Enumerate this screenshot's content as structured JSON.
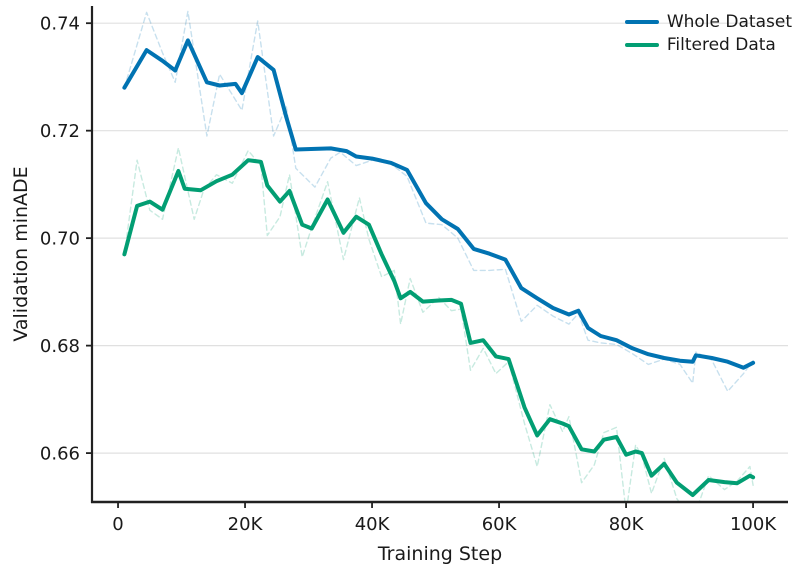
{
  "chart_data": {
    "type": "line",
    "title": "",
    "xlabel": "Training Step",
    "ylabel": "Validation minADE",
    "grid": "horizontal-only",
    "legend_position": "upper right",
    "axes": {
      "xlim_ksteps": [
        -4.1,
        105.5
      ],
      "ylim": [
        0.6509,
        0.7432
      ],
      "x_ticks": [
        {
          "value": 0,
          "label": "0"
        },
        {
          "value": 20,
          "label": "20K"
        },
        {
          "value": 40,
          "label": "40K"
        },
        {
          "value": 60,
          "label": "60K"
        },
        {
          "value": 80,
          "label": "80K"
        },
        {
          "value": 100,
          "label": "100K"
        }
      ],
      "y_ticks": [
        {
          "value": 0.66,
          "label": "0.66"
        },
        {
          "value": 0.68,
          "label": "0.68"
        },
        {
          "value": 0.7,
          "label": "0.70"
        },
        {
          "value": 0.72,
          "label": "0.72"
        },
        {
          "value": 0.74,
          "label": "0.74"
        }
      ]
    },
    "colors": {
      "whole_dataset": "#0173b2",
      "filtered_data": "#029e73",
      "grid_line": "#e0e0e0",
      "spine": "#212121",
      "text": "#1a1a1a"
    },
    "legend": [
      {
        "label": "Whole Dataset",
        "color": "#0173b2"
      },
      {
        "label": "Filtered Data",
        "color": "#029e73"
      }
    ],
    "series": [
      {
        "name": "Whole Dataset (raw, unsmoothed)",
        "role": "raw",
        "color": "#0173b2",
        "opacity": 0.22,
        "dashed": true,
        "line_width": 1.4,
        "x_ksteps": [
          1,
          4.5,
          7,
          9,
          11,
          14,
          16,
          19.5,
          22,
          24.5,
          26.5,
          28,
          31,
          33.5,
          35,
          37.5,
          40,
          43,
          45.5,
          48.5,
          51,
          53.5,
          56,
          58.5,
          61,
          63.5,
          66,
          68.5,
          71,
          72.5,
          74,
          76,
          78.5,
          81,
          83.5,
          86,
          88.5,
          90.5,
          91,
          93.5,
          96,
          98.5,
          100
        ],
        "y": [
          0.728,
          0.742,
          0.7345,
          0.729,
          0.7422,
          0.719,
          0.7305,
          0.7238,
          0.7404,
          0.719,
          0.7245,
          0.713,
          0.7095,
          0.7149,
          0.716,
          0.7135,
          0.7145,
          0.7138,
          0.7115,
          0.7028,
          0.7025,
          0.7,
          0.694,
          0.694,
          0.6942,
          0.6845,
          0.6875,
          0.6855,
          0.684,
          0.686,
          0.681,
          0.6805,
          0.6802,
          0.6785,
          0.6765,
          0.6775,
          0.6765,
          0.673,
          0.6788,
          0.6773,
          0.6715,
          0.6748,
          0.6772
        ]
      },
      {
        "name": "Filtered Data (raw, unsmoothed)",
        "role": "raw",
        "color": "#029e73",
        "opacity": 0.22,
        "dashed": true,
        "line_width": 1.4,
        "x_ksteps": [
          1,
          3,
          5,
          7,
          9.5,
          12,
          13.5,
          15.5,
          18,
          20.5,
          22.5,
          23.5,
          25.5,
          27,
          29,
          30.5,
          33,
          35.5,
          38,
          39.5,
          41.5,
          43.5,
          44.5,
          46,
          48,
          50.5,
          52.5,
          54,
          55.5,
          57.5,
          59.5,
          61.5,
          64,
          66,
          68,
          70,
          71,
          73,
          75,
          76.5,
          78.5,
          80,
          81.5,
          82.5,
          84,
          86,
          88,
          90.5,
          93,
          95.5,
          97.5,
          99.5,
          100
        ],
        "y": [
          0.697,
          0.7145,
          0.7052,
          0.7035,
          0.7168,
          0.7035,
          0.709,
          0.7118,
          0.7102,
          0.7163,
          0.7135,
          0.7005,
          0.704,
          0.7118,
          0.6965,
          0.702,
          0.7105,
          0.696,
          0.7075,
          0.6998,
          0.6928,
          0.694,
          0.684,
          0.6925,
          0.6862,
          0.689,
          0.6865,
          0.6868,
          0.6754,
          0.6795,
          0.6748,
          0.677,
          0.6655,
          0.6575,
          0.669,
          0.664,
          0.6668,
          0.6545,
          0.6578,
          0.6638,
          0.6648,
          0.649,
          0.6615,
          0.6595,
          0.6525,
          0.659,
          0.6515,
          0.6475,
          0.6558,
          0.6532,
          0.6548,
          0.6575,
          0.654
        ]
      },
      {
        "name": "Whole Dataset",
        "role": "smoothed",
        "color": "#0173b2",
        "opacity": 1,
        "dashed": false,
        "line_width": 4,
        "x_ksteps": [
          1,
          4.5,
          7,
          9,
          11,
          14,
          16,
          18.5,
          19.5,
          22,
          24.5,
          26.5,
          28,
          31,
          33.5,
          36,
          37.5,
          40,
          43,
          45.5,
          48.5,
          51,
          53.5,
          56,
          58.5,
          61,
          63.5,
          66,
          68.5,
          71,
          72.5,
          74,
          76,
          78.5,
          81,
          83.5,
          86,
          88.5,
          90.5,
          91,
          93.5,
          96,
          98.5,
          100
        ],
        "y": [
          0.728,
          0.735,
          0.733,
          0.7312,
          0.7368,
          0.729,
          0.7284,
          0.7287,
          0.727,
          0.7337,
          0.7313,
          0.7225,
          0.7165,
          0.7166,
          0.7167,
          0.7162,
          0.7152,
          0.7148,
          0.714,
          0.7127,
          0.7065,
          0.7035,
          0.7017,
          0.698,
          0.6971,
          0.696,
          0.6907,
          0.6888,
          0.687,
          0.6858,
          0.6865,
          0.6833,
          0.6818,
          0.681,
          0.6795,
          0.6784,
          0.6777,
          0.6772,
          0.677,
          0.6782,
          0.6777,
          0.677,
          0.6759,
          0.6768
        ]
      },
      {
        "name": "Filtered Data",
        "role": "smoothed",
        "color": "#029e73",
        "opacity": 1,
        "dashed": false,
        "line_width": 4,
        "x_ksteps": [
          1,
          3,
          5,
          7,
          9.5,
          10.5,
          13,
          15.5,
          18,
          20.5,
          22.5,
          23.5,
          25.5,
          27,
          29,
          30.5,
          33,
          35.5,
          37.5,
          39.5,
          41.5,
          43.5,
          44.5,
          46,
          48,
          50.5,
          52.5,
          54,
          55.5,
          57.5,
          59.5,
          61.5,
          64,
          66,
          68,
          70,
          71,
          73,
          75,
          76.5,
          78.5,
          80,
          81.5,
          82.5,
          84,
          86,
          88,
          90.5,
          93,
          95.5,
          97.5,
          99.5,
          100
        ],
        "y": [
          0.697,
          0.706,
          0.7068,
          0.7053,
          0.7125,
          0.7092,
          0.7089,
          0.7106,
          0.7118,
          0.7145,
          0.7142,
          0.7098,
          0.7068,
          0.7088,
          0.7025,
          0.7018,
          0.7072,
          0.701,
          0.704,
          0.7025,
          0.697,
          0.692,
          0.6888,
          0.69,
          0.6882,
          0.6884,
          0.6885,
          0.6878,
          0.6805,
          0.681,
          0.678,
          0.6775,
          0.6685,
          0.6633,
          0.6663,
          0.6655,
          0.665,
          0.6607,
          0.6603,
          0.6625,
          0.663,
          0.6597,
          0.6603,
          0.66,
          0.6558,
          0.658,
          0.6545,
          0.6522,
          0.655,
          0.6546,
          0.6544,
          0.6558,
          0.6555
        ]
      }
    ]
  }
}
